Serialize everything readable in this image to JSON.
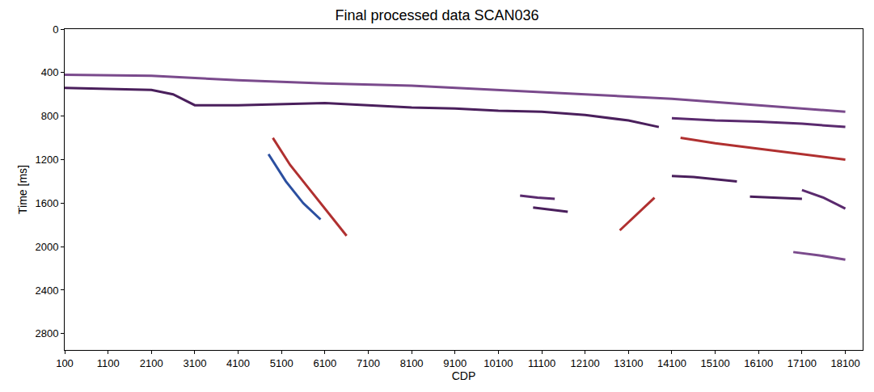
{
  "chart_data": {
    "type": "line",
    "title": "Final processed data SCAN036",
    "x_label": "CDP",
    "y_label": "Time [ms]",
    "xlim": [
      100,
      18500
    ],
    "xticks": [
      100,
      1100,
      2100,
      3100,
      4100,
      5100,
      6100,
      7100,
      8100,
      9100,
      10100,
      11100,
      12100,
      13100,
      14100,
      15100,
      16100,
      17100,
      18100
    ],
    "ylim": [
      2950,
      0
    ],
    "yticks": [
      0,
      400,
      800,
      1200,
      1600,
      2000,
      2400,
      2800
    ],
    "grid": false,
    "series": [
      {
        "color": "#4a1f5c",
        "line_style": "solid",
        "x": [
          100,
          1100,
          2100,
          2600,
          3100,
          4100,
          5100,
          6100,
          7100,
          8100,
          9100,
          10100,
          11100,
          12100,
          13100,
          13800
        ],
        "values": [
          540,
          550,
          560,
          600,
          700,
          700,
          690,
          680,
          700,
          720,
          730,
          750,
          760,
          790,
          840,
          900
        ]
      },
      {
        "color": "#7a4a8c",
        "line_style": "solid",
        "x": [
          100,
          2100,
          4100,
          6100,
          8100,
          10100,
          12100,
          14100,
          16100,
          18100
        ],
        "values": [
          420,
          430,
          470,
          500,
          520,
          560,
          600,
          640,
          700,
          760
        ]
      },
      {
        "color": "#5a2a6e",
        "line_style": "solid",
        "x": [
          14100,
          15100,
          16100,
          17100,
          18100
        ],
        "values": [
          820,
          840,
          850,
          870,
          900
        ]
      },
      {
        "color": "#b03030",
        "line_style": "solid",
        "x": [
          14300,
          15100,
          16100,
          17100,
          18100
        ],
        "values": [
          1000,
          1050,
          1100,
          1150,
          1200
        ]
      },
      {
        "color": "#4a1f5c",
        "line_style": "solid",
        "x": [
          14100,
          14600,
          15100,
          15600
        ],
        "values": [
          1350,
          1360,
          1380,
          1400
        ]
      },
      {
        "color": "#4a1f5c",
        "line_style": "solid",
        "x": [
          15900,
          16500,
          17100
        ],
        "values": [
          1540,
          1550,
          1560
        ]
      },
      {
        "color": "#5a2a6e",
        "line_style": "solid",
        "x": [
          17100,
          17600,
          18100
        ],
        "values": [
          1480,
          1550,
          1650
        ]
      },
      {
        "color": "#b03030",
        "line_style": "solid",
        "x": [
          4900,
          5300,
          5700,
          6100,
          6600
        ],
        "values": [
          1000,
          1250,
          1450,
          1650,
          1900
        ]
      },
      {
        "color": "#2b4fa0",
        "line_style": "solid",
        "x": [
          4800,
          5200,
          5600,
          6000
        ],
        "values": [
          1150,
          1400,
          1600,
          1750
        ]
      },
      {
        "color": "#5a2a6e",
        "line_style": "solid",
        "x": [
          10600,
          11000,
          11400
        ],
        "values": [
          1530,
          1550,
          1560
        ]
      },
      {
        "color": "#4a1f5c",
        "line_style": "solid",
        "x": [
          10900,
          11300,
          11700
        ],
        "values": [
          1640,
          1660,
          1680
        ]
      },
      {
        "color": "#b03030",
        "line_style": "solid",
        "x": [
          12900,
          13300,
          13700
        ],
        "values": [
          1850,
          1700,
          1550
        ]
      },
      {
        "color": "#7a4a8c",
        "line_style": "solid",
        "x": [
          16900,
          17500,
          18100
        ],
        "values": [
          2050,
          2080,
          2120
        ]
      }
    ]
  }
}
